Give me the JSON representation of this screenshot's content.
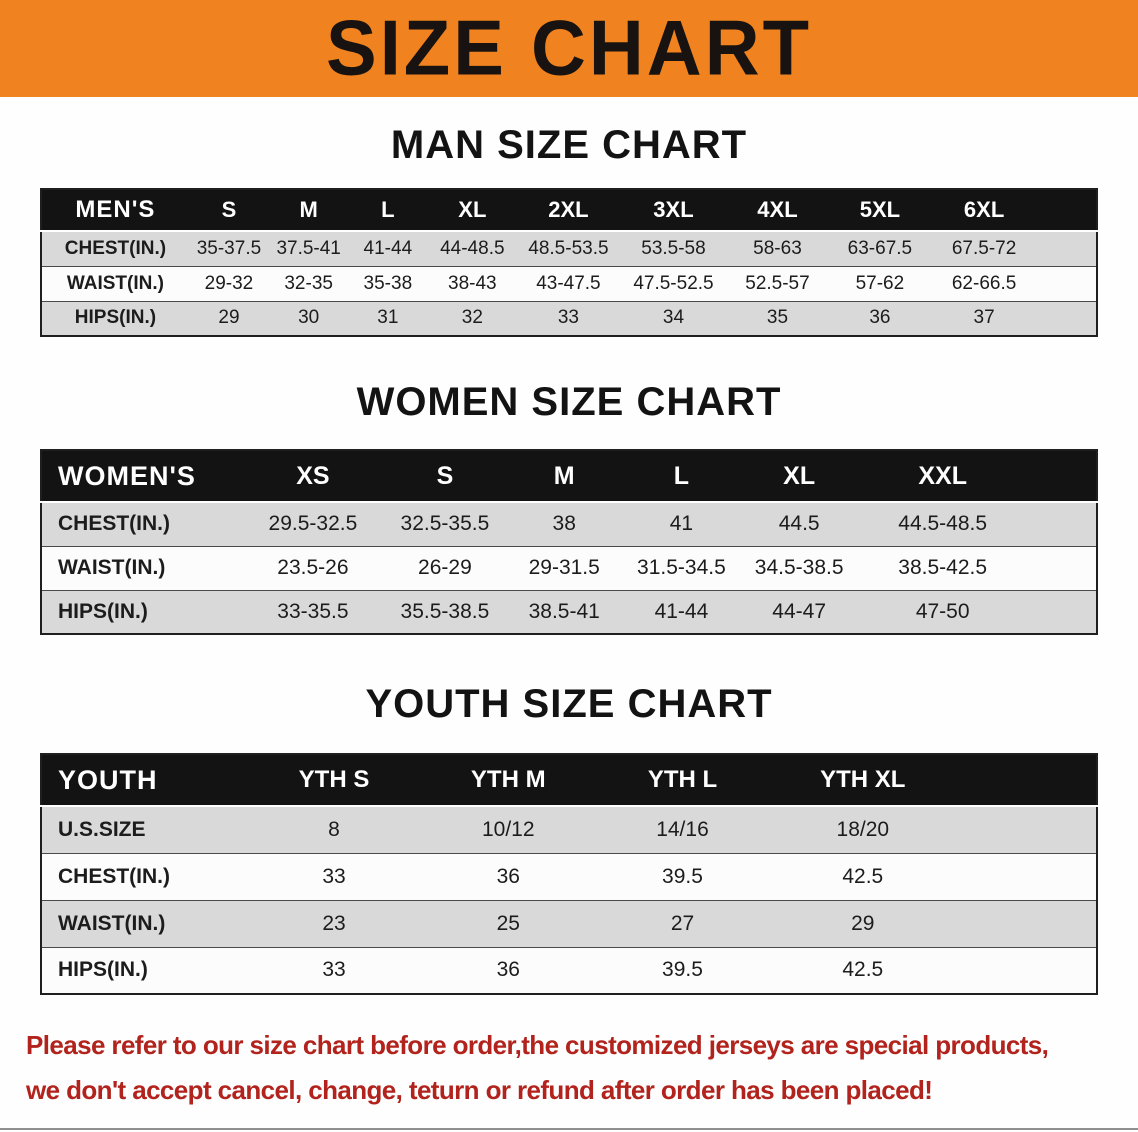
{
  "banner": {
    "title": "SIZE CHART"
  },
  "colors": {
    "banner_bg": "#f0831f",
    "banner_text": "#181310",
    "header_row_bg": "#131313",
    "header_row_text": "#ffffff",
    "row_alt_bg": "#d9d9d9",
    "row_bg": "#fcfcfc",
    "note_color": "#b1231c"
  },
  "tables": {
    "men": {
      "section_title": "MAN SIZE CHART",
      "header": [
        "MEN'S",
        "S",
        "M",
        "L",
        "XL",
        "2XL",
        "3XL",
        "4XL",
        "5XL",
        "6XL"
      ],
      "rows": [
        [
          "CHEST(IN.)",
          "35-37.5",
          "37.5-41",
          "41-44",
          "44-48.5",
          "48.5-53.5",
          "53.5-58",
          "58-63",
          "63-67.5",
          "67.5-72"
        ],
        [
          "WAIST(IN.)",
          "29-32",
          "32-35",
          "35-38",
          "38-43",
          "43-47.5",
          "47.5-52.5",
          "52.5-57",
          "57-62",
          "62-66.5"
        ],
        [
          "HIPS(IN.)",
          "29",
          "30",
          "31",
          "32",
          "33",
          "34",
          "35",
          "36",
          "37"
        ]
      ]
    },
    "women": {
      "section_title": "WOMEN SIZE CHART",
      "header": [
        "WOMEN'S",
        "XS",
        "S",
        "M",
        "L",
        "XL",
        "XXL"
      ],
      "rows": [
        [
          "CHEST(IN.)",
          "29.5-32.5",
          "32.5-35.5",
          "38",
          "41",
          "44.5",
          "44.5-48.5"
        ],
        [
          "WAIST(IN.)",
          "23.5-26",
          "26-29",
          "29-31.5",
          "31.5-34.5",
          "34.5-38.5",
          "38.5-42.5"
        ],
        [
          "HIPS(IN.)",
          "33-35.5",
          "35.5-38.5",
          "38.5-41",
          "41-44",
          "44-47",
          "47-50"
        ]
      ]
    },
    "youth": {
      "section_title": "YOUTH SIZE CHART",
      "header": [
        "YOUTH",
        "YTH S",
        "YTH M",
        "YTH L",
        "YTH XL"
      ],
      "rows": [
        [
          "U.S.SIZE",
          "8",
          "10/12",
          "14/16",
          "18/20"
        ],
        [
          "CHEST(IN.)",
          "33",
          "36",
          "39.5",
          "42.5"
        ],
        [
          "WAIST(IN.)",
          "23",
          "25",
          "27",
          "29"
        ],
        [
          "HIPS(IN.)",
          "33",
          "36",
          "39.5",
          "42.5"
        ]
      ]
    }
  },
  "footer_note": {
    "line1": "Please refer to our size chart before order,the customized jerseys are special products,",
    "line2": "we don't accept cancel, change, teturn or refund after order has been placed!"
  }
}
